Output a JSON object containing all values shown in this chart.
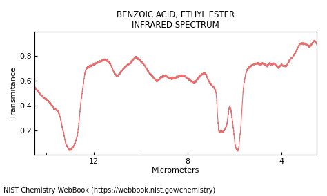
{
  "title_line1": "BENZOIC ACID, ETHYL ESTER",
  "title_line2": "INFRARED SPECTRUM",
  "xlabel": "Micrometers",
  "ylabel": "Transmitance",
  "footer": "NIST Chemistry WebBook (https://webbook.nist.gov/chemistry)",
  "line_color": "#e87070",
  "background_color": "#ffffff",
  "xlim": [
    14.5,
    2.5
  ],
  "ylim": [
    0.0,
    1.0
  ],
  "yticks": [
    0.2,
    0.4,
    0.6,
    0.8
  ],
  "xticks": [
    12,
    8,
    4
  ],
  "title_fontsize": 8.5,
  "axis_label_fontsize": 8,
  "tick_fontsize": 8,
  "footer_fontsize": 7,
  "waypoints_x": [
    2.5,
    2.6,
    2.8,
    3.0,
    3.2,
    3.3,
    3.4,
    3.5,
    3.6,
    3.7,
    3.8,
    3.9,
    4.0,
    4.1,
    4.2,
    4.3,
    4.4,
    4.5,
    4.6,
    4.7,
    4.8,
    4.9,
    5.0,
    5.1,
    5.2,
    5.3,
    5.45,
    5.6,
    5.75,
    5.85,
    5.95,
    6.05,
    6.2,
    6.35,
    6.5,
    6.65,
    6.8,
    6.95,
    7.1,
    7.25,
    7.4,
    7.55,
    7.7,
    7.85,
    8.0,
    8.15,
    8.3,
    8.45,
    8.6,
    8.75,
    8.95,
    9.1,
    9.3,
    9.45,
    9.65,
    9.85,
    10.05,
    10.2,
    10.4,
    10.6,
    10.8,
    11.0,
    11.1,
    11.3,
    11.5,
    11.8,
    12.0,
    12.3,
    12.5,
    12.7,
    12.85,
    13.0,
    13.15,
    13.3,
    13.5,
    13.7,
    13.85,
    14.1,
    14.3,
    14.5
  ],
  "waypoints_y": [
    0.9,
    0.92,
    0.88,
    0.9,
    0.9,
    0.87,
    0.83,
    0.8,
    0.78,
    0.75,
    0.72,
    0.72,
    0.73,
    0.71,
    0.72,
    0.74,
    0.73,
    0.74,
    0.72,
    0.73,
    0.74,
    0.73,
    0.74,
    0.74,
    0.73,
    0.72,
    0.69,
    0.57,
    0.18,
    0.04,
    0.06,
    0.22,
    0.39,
    0.23,
    0.19,
    0.19,
    0.52,
    0.56,
    0.6,
    0.66,
    0.65,
    0.62,
    0.59,
    0.6,
    0.62,
    0.64,
    0.64,
    0.63,
    0.62,
    0.62,
    0.64,
    0.63,
    0.6,
    0.63,
    0.67,
    0.73,
    0.77,
    0.79,
    0.75,
    0.72,
    0.68,
    0.64,
    0.66,
    0.74,
    0.77,
    0.75,
    0.73,
    0.7,
    0.48,
    0.15,
    0.07,
    0.04,
    0.08,
    0.2,
    0.35,
    0.38,
    0.42,
    0.46,
    0.5,
    0.55
  ]
}
